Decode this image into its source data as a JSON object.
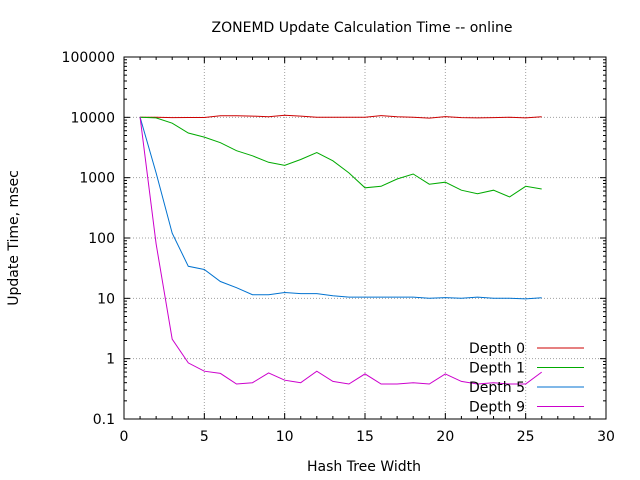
{
  "chart_data": {
    "type": "line",
    "title": "ZONEMD Update Calculation Time -- online",
    "xlabel": "Hash Tree Width",
    "ylabel": "Update Time, msec",
    "xlim": [
      0,
      30
    ],
    "ylim": [
      0.1,
      100000
    ],
    "y_scale": "log",
    "grid": true,
    "legend_position": "bottom-right",
    "x_ticks": [
      {
        "value": 0,
        "label": "0"
      },
      {
        "value": 5,
        "label": "5"
      },
      {
        "value": 10,
        "label": "10"
      },
      {
        "value": 15,
        "label": "15"
      },
      {
        "value": 20,
        "label": "20"
      },
      {
        "value": 25,
        "label": "25"
      },
      {
        "value": 30,
        "label": "30"
      }
    ],
    "y_ticks": [
      {
        "value": 0.1,
        "label": "0.1"
      },
      {
        "value": 1,
        "label": "1"
      },
      {
        "value": 10,
        "label": "10"
      },
      {
        "value": 100,
        "label": "100"
      },
      {
        "value": 1000,
        "label": "1000"
      },
      {
        "value": 10000,
        "label": "10000"
      },
      {
        "value": 100000,
        "label": "100000"
      }
    ],
    "x": [
      1,
      2,
      3,
      4,
      5,
      6,
      7,
      8,
      9,
      10,
      11,
      12,
      13,
      14,
      15,
      16,
      17,
      18,
      19,
      20,
      21,
      22,
      23,
      24,
      25,
      26
    ],
    "series": [
      {
        "name": "Depth 0",
        "color": "#cc0000",
        "values": [
          10000,
          10000,
          9900,
          9950,
          9950,
          10600,
          10600,
          10500,
          10200,
          10800,
          10500,
          10000,
          10000,
          10000,
          10000,
          10700,
          10200,
          10000,
          9700,
          10300,
          9900,
          9800,
          9900,
          10000,
          9800,
          10200
        ]
      },
      {
        "name": "Depth 1",
        "color": "#00aa00",
        "values": [
          10000,
          9800,
          8000,
          5500,
          4700,
          3800,
          2800,
          2300,
          1800,
          1600,
          2000,
          2600,
          1900,
          1200,
          680,
          720,
          950,
          1150,
          780,
          840,
          620,
          540,
          620,
          480,
          720,
          650
        ]
      },
      {
        "name": "Depth 5",
        "color": "#0072d0",
        "values": [
          10000,
          1200,
          120,
          34,
          30,
          19,
          15,
          11.5,
          11.5,
          12.5,
          12,
          12,
          11,
          10.5,
          10.5,
          10.5,
          10.5,
          10.5,
          10,
          10.3,
          10,
          10.5,
          10,
          10,
          9.8,
          10.2
        ]
      },
      {
        "name": "Depth 9",
        "color": "#cc00cc",
        "values": [
          10000,
          80,
          2.1,
          0.85,
          0.62,
          0.57,
          0.38,
          0.4,
          0.58,
          0.44,
          0.4,
          0.62,
          0.42,
          0.38,
          0.56,
          0.38,
          0.38,
          0.4,
          0.38,
          0.56,
          0.42,
          0.38,
          0.4,
          0.38,
          0.38,
          0.6
        ]
      }
    ]
  }
}
